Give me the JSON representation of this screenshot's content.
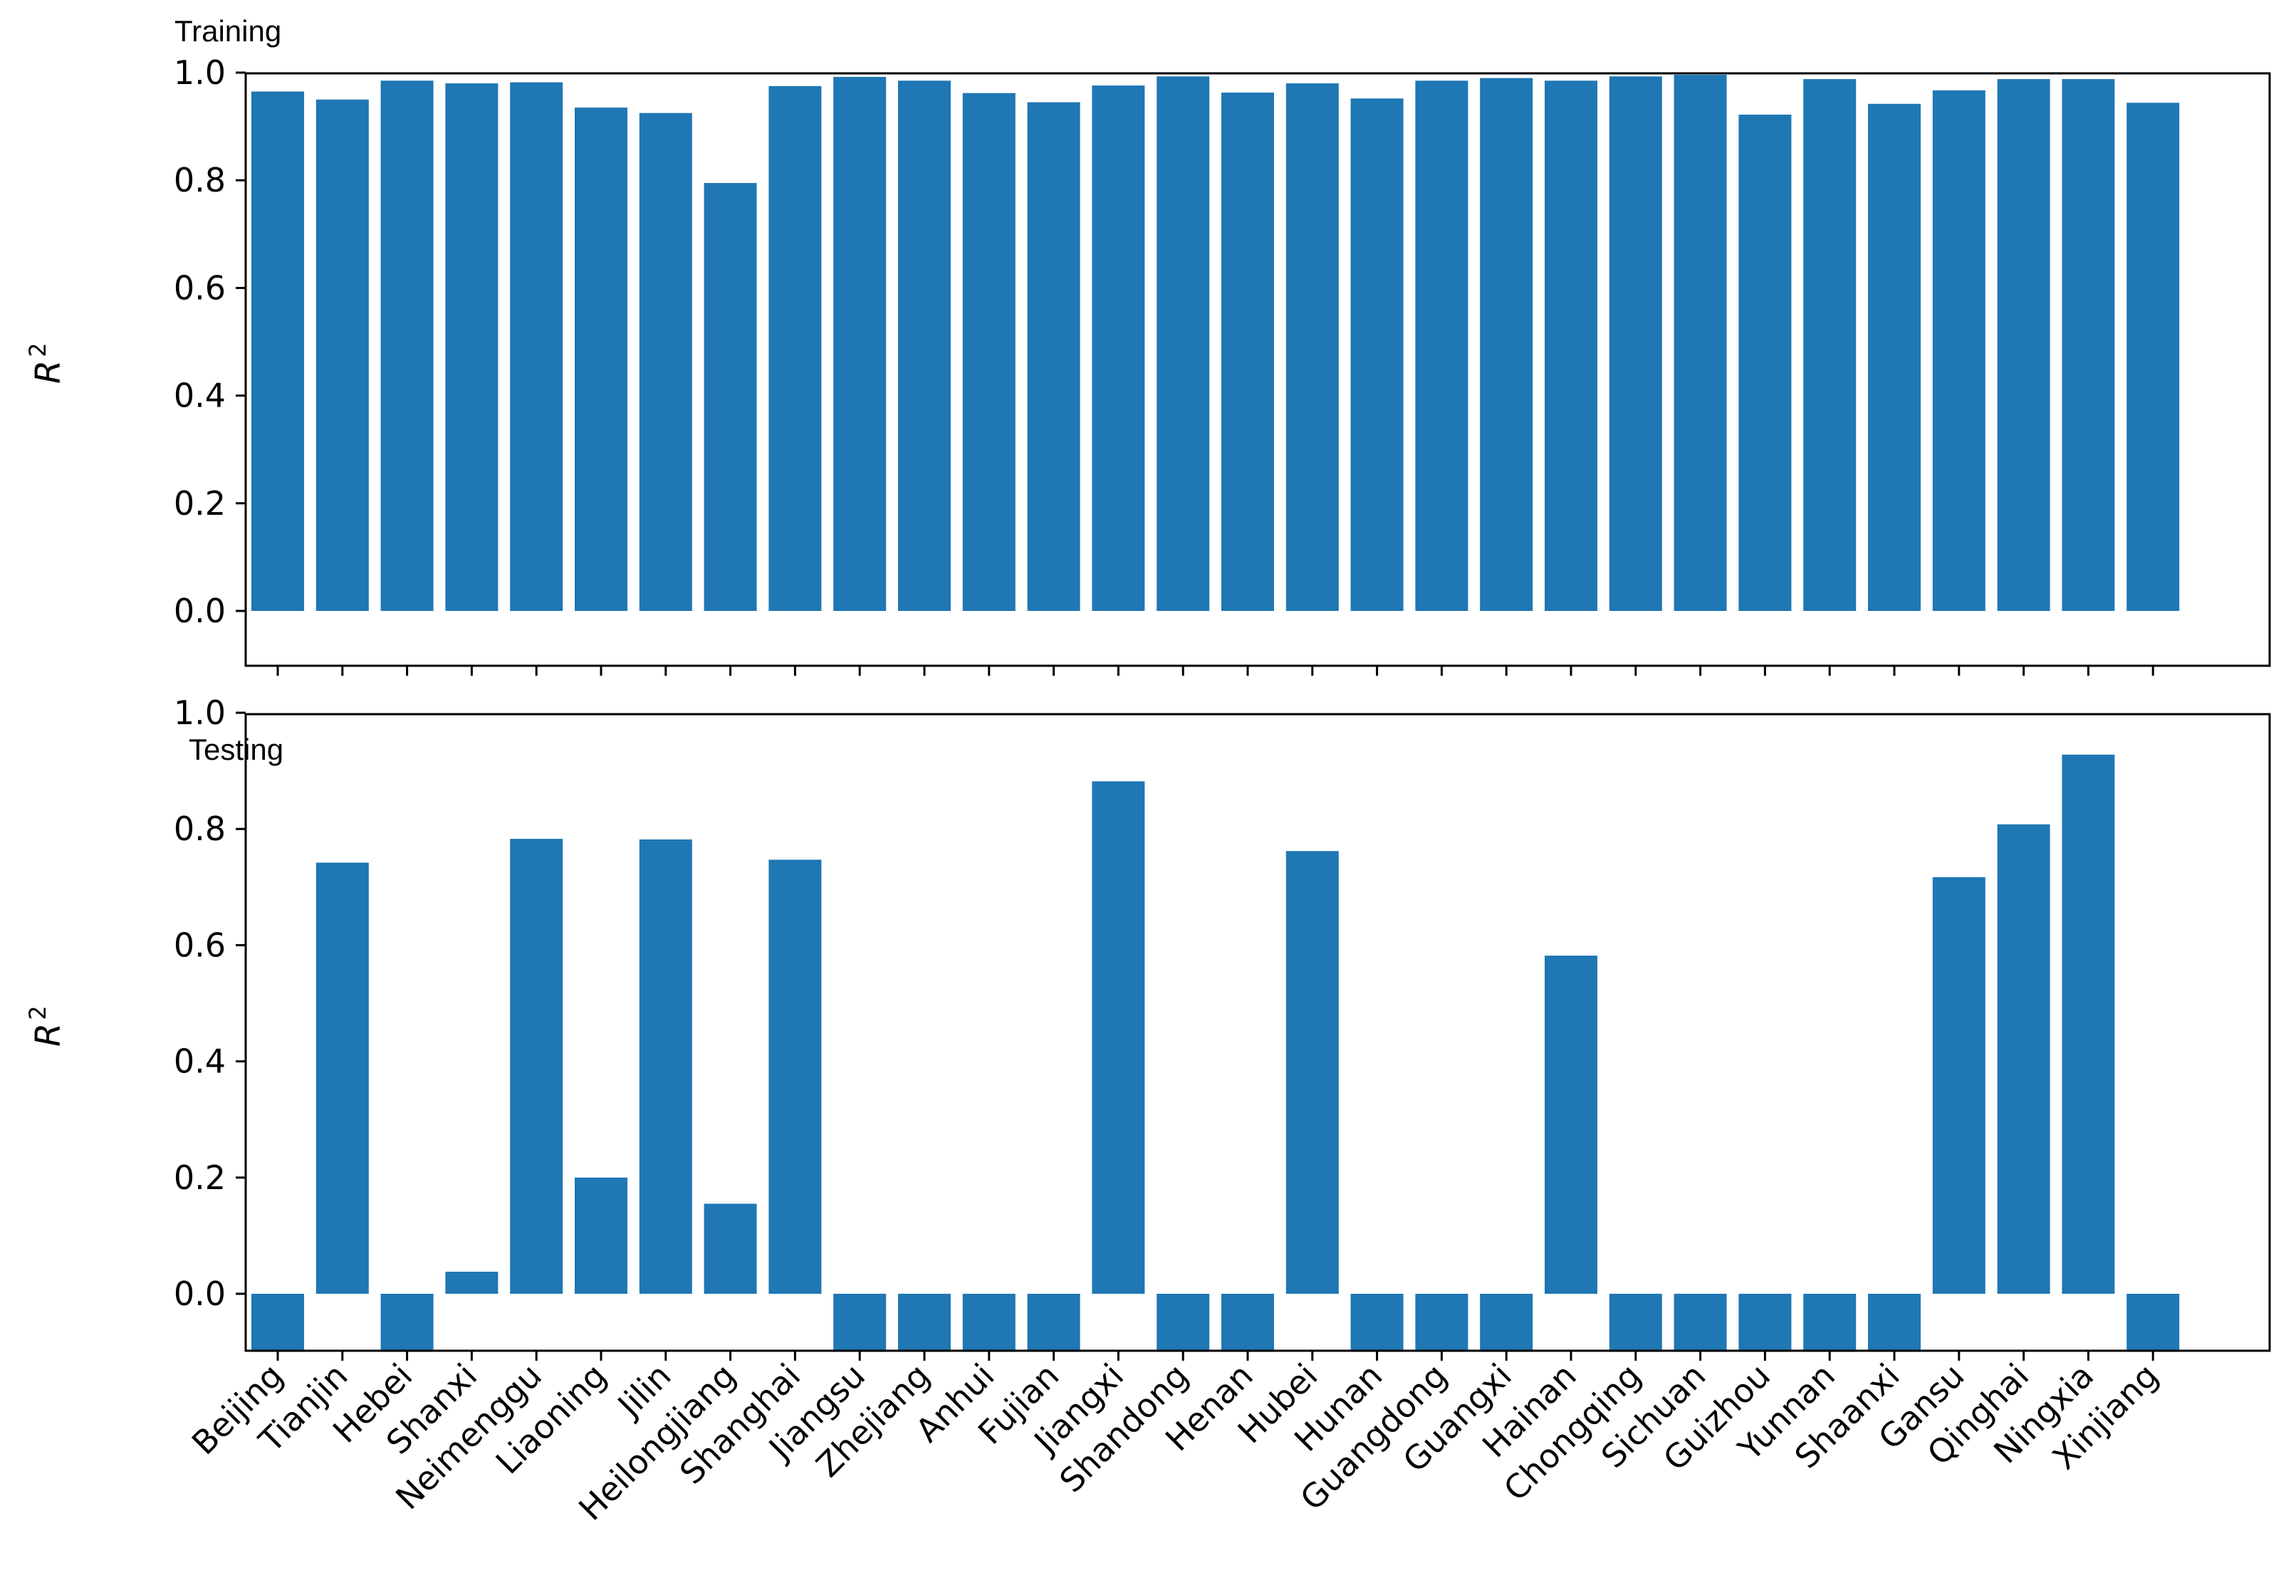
{
  "chart_data": {
    "type": "bar",
    "categories": [
      "Beijing",
      "Tianjin",
      "Hebei",
      "Shanxi",
      "Neimenggu",
      "Liaoning",
      "Jilin",
      "Heilongjiang",
      "Shanghai",
      "Jiangsu",
      "Zhejiang",
      "Anhui",
      "Fujian",
      "Jiangxi",
      "Shandong",
      "Henan",
      "Hubei",
      "Hunan",
      "Guangdong",
      "Guangxi",
      "Hainan",
      "Chongqing",
      "Sichuan",
      "Guizhou",
      "Yunnan",
      "Shaanxi",
      "Gansu",
      "Qinghai",
      "Ningxia",
      "Xinjiang"
    ],
    "bar_color": "#1f77b4",
    "panels": [
      {
        "name": "Training",
        "ylabel": "R",
        "ylabel_superscript": "2",
        "ylim": [
          -0.1,
          1.0
        ],
        "yticks": [
          "0.0",
          "0.2",
          "0.4",
          "0.6",
          "0.8",
          "1.0"
        ],
        "values": [
          0.965,
          0.95,
          0.985,
          0.98,
          0.982,
          0.935,
          0.925,
          0.795,
          0.975,
          0.992,
          0.985,
          0.962,
          0.945,
          0.976,
          0.993,
          0.963,
          0.98,
          0.952,
          0.985,
          0.99,
          0.985,
          0.993,
          0.996,
          0.922,
          0.988,
          0.942,
          0.967,
          0.988,
          0.988,
          0.944
        ]
      },
      {
        "name": "Testing",
        "ylabel": "R",
        "ylabel_superscript": "2",
        "ylim": [
          -0.1,
          1.0
        ],
        "yticks": [
          "0.0",
          "0.2",
          "0.4",
          "0.6",
          "0.8",
          "1.0"
        ],
        "values": [
          -0.1,
          0.742,
          -0.1,
          0.038,
          0.783,
          0.2,
          0.782,
          0.155,
          0.747,
          -0.1,
          -0.1,
          -0.1,
          -0.1,
          0.882,
          -0.1,
          -0.1,
          0.762,
          -0.1,
          -0.1,
          -0.1,
          0.582,
          -0.1,
          -0.1,
          -0.1,
          -0.1,
          -0.1,
          0.717,
          0.808,
          0.928,
          -0.1
        ]
      }
    ]
  }
}
